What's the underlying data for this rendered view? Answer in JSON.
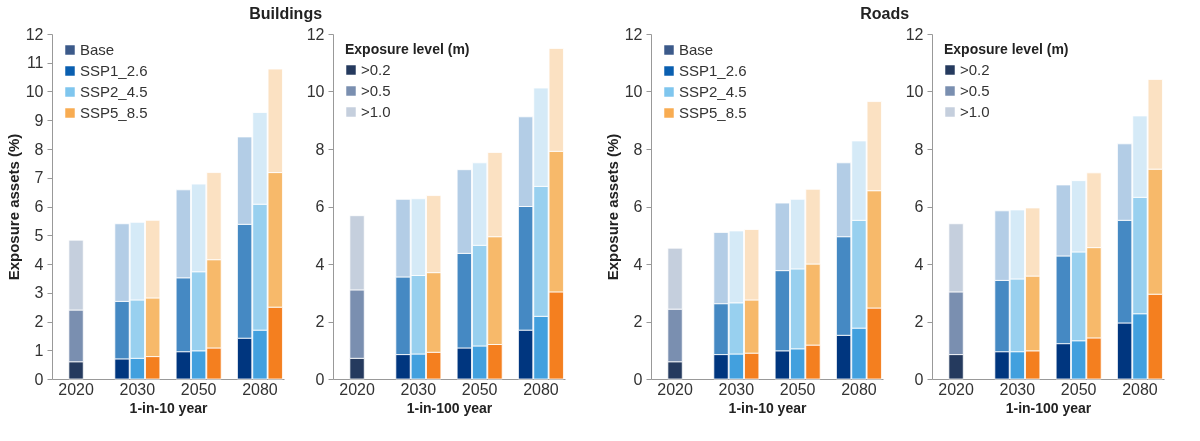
{
  "chart_data": [
    {
      "type": "bar",
      "stacked": true,
      "title": "Buildings",
      "xlabel": "1-in-10 year",
      "ylabel": "Exposure assets (%)",
      "ylim": [
        0,
        12
      ],
      "yticks": [
        0,
        1,
        2,
        3,
        4,
        5,
        6,
        7,
        8,
        9,
        10,
        11,
        12
      ],
      "grid": false,
      "legend": "top left",
      "categories": [
        null,
        "2020",
        null,
        null,
        null,
        "2030",
        null,
        null,
        null,
        "2050",
        null,
        null,
        null,
        "2080",
        null
      ],
      "series": [
        {
          "colors": [
            null,
            "#253a5e",
            null,
            null,
            "#00367f",
            "#42a0de",
            "#f47f1f",
            null,
            "#00367f",
            "#42a0de",
            "#f47f1f",
            null,
            "#00367f",
            "#42a0de",
            "#f47f1f"
          ],
          "values": [
            null,
            0.6,
            null,
            null,
            0.7,
            0.72,
            0.78,
            null,
            0.95,
            0.98,
            1.08,
            null,
            1.42,
            1.7,
            2.5
          ]
        },
        {
          "colors": [
            null,
            "#7a8fb0",
            null,
            null,
            "#4589c3",
            "#98d0ef",
            "#f7b96a",
            null,
            "#4589c3",
            "#98d0ef",
            "#f7b96a",
            null,
            "#4589c3",
            "#98d0ef",
            "#f7b96a"
          ],
          "values": [
            null,
            1.8,
            null,
            null,
            2.0,
            2.03,
            2.04,
            null,
            2.57,
            2.75,
            3.07,
            null,
            3.96,
            4.38,
            4.68
          ]
        },
        {
          "colors": [
            null,
            "#c5cfdd",
            null,
            null,
            "#b3cde6",
            "#d5eaf7",
            "#fbe1c2",
            null,
            "#b3cde6",
            "#d5eaf7",
            "#fbe1c2",
            null,
            "#b3cde6",
            "#d5eaf7",
            "#fbe1c2"
          ],
          "values": [
            null,
            2.43,
            null,
            null,
            2.7,
            2.7,
            2.7,
            null,
            3.06,
            3.05,
            3.03,
            null,
            3.04,
            3.19,
            3.6
          ]
        },
        {
          "name": "Base",
          "color": "#3c5a8a",
          "values": [
            null,
            null,
            null,
            null,
            null,
            null,
            null,
            null,
            null,
            null,
            null,
            null,
            null,
            null,
            null
          ]
        },
        {
          "name": "SSP1_2.6",
          "color": "#0a5fb0",
          "values": [
            null,
            null,
            null,
            null,
            null,
            null,
            null,
            null,
            null,
            null,
            null,
            null,
            null,
            null,
            null
          ]
        },
        {
          "name": "SSP2_4.5",
          "color": "#7fc6ee",
          "values": [
            null,
            null,
            null,
            null,
            null,
            null,
            null,
            null,
            null,
            null,
            null,
            null,
            null,
            null,
            null
          ]
        },
        {
          "name": "SSP5_8.5",
          "color": "#f8ac52",
          "values": [
            null,
            null,
            null,
            null,
            null,
            null,
            null,
            null,
            null,
            null,
            null,
            null,
            null,
            null,
            null
          ]
        }
      ]
    },
    {
      "type": "bar",
      "stacked": true,
      "xlabel": "1-in-100 year",
      "ylim": [
        0,
        12
      ],
      "yticks": [
        0,
        2,
        4,
        6,
        8,
        10,
        12
      ],
      "grid": false,
      "legend": "top left",
      "legend_title": "Exposure level (m)",
      "categories": [
        null,
        "2020",
        null,
        null,
        null,
        "2030",
        null,
        null,
        null,
        "2050",
        null,
        null,
        null,
        "2080",
        null
      ],
      "series": [
        {
          "name": ">0.2",
          "color": "#253a5e",
          "colors": [
            null,
            "#253a5e",
            null,
            null,
            "#00367f",
            "#42a0de",
            "#f47f1f",
            null,
            "#00367f",
            "#42a0de",
            "#f47f1f",
            null,
            "#00367f",
            "#42a0de",
            "#f47f1f"
          ],
          "values": [
            null,
            0.72,
            null,
            null,
            0.85,
            0.87,
            0.93,
            null,
            1.08,
            1.15,
            1.2,
            null,
            1.7,
            2.18,
            3.03
          ]
        },
        {
          "name": ">0.5",
          "color": "#7a8fb0",
          "colors": [
            null,
            "#7a8fb0",
            null,
            null,
            "#4589c3",
            "#98d0ef",
            "#f7b96a",
            null,
            "#4589c3",
            "#98d0ef",
            "#f7b96a",
            null,
            "#4589c3",
            "#98d0ef",
            "#f7b96a"
          ],
          "values": [
            null,
            2.38,
            null,
            null,
            2.7,
            2.73,
            2.77,
            null,
            3.29,
            3.5,
            3.75,
            null,
            4.3,
            4.52,
            4.89
          ]
        },
        {
          "name": ">1.0",
          "color": "#c5cfdd",
          "colors": [
            null,
            "#c5cfdd",
            null,
            null,
            "#b3cde6",
            "#d5eaf7",
            "#fbe1c2",
            null,
            "#b3cde6",
            "#d5eaf7",
            "#fbe1c2",
            null,
            "#b3cde6",
            "#d5eaf7",
            "#fbe1c2"
          ],
          "values": [
            null,
            2.58,
            null,
            null,
            2.7,
            2.67,
            2.68,
            null,
            2.91,
            2.87,
            2.93,
            null,
            3.12,
            3.42,
            3.58
          ]
        }
      ]
    },
    {
      "type": "bar",
      "stacked": true,
      "title": "Roads",
      "xlabel": "1-in-10 year",
      "ylabel": "Exposure assets (%)",
      "ylim": [
        0,
        12
      ],
      "yticks": [
        0,
        2,
        4,
        6,
        8,
        10,
        12
      ],
      "grid": false,
      "legend": "top left",
      "categories": [
        null,
        "2020",
        null,
        null,
        null,
        "2030",
        null,
        null,
        null,
        "2050",
        null,
        null,
        null,
        "2080",
        null
      ],
      "series": [
        {
          "colors": [
            null,
            "#253a5e",
            null,
            null,
            "#00367f",
            "#42a0de",
            "#f47f1f",
            null,
            "#00367f",
            "#42a0de",
            "#f47f1f",
            null,
            "#00367f",
            "#42a0de",
            "#f47f1f"
          ],
          "values": [
            null,
            0.6,
            null,
            null,
            0.85,
            0.87,
            0.9,
            null,
            0.98,
            1.05,
            1.18,
            null,
            1.52,
            1.77,
            2.47
          ]
        },
        {
          "colors": [
            null,
            "#7a8fb0",
            null,
            null,
            "#4589c3",
            "#98d0ef",
            "#f7b96a",
            null,
            "#4589c3",
            "#98d0ef",
            "#f7b96a",
            null,
            "#4589c3",
            "#98d0ef",
            "#f7b96a"
          ],
          "values": [
            null,
            1.83,
            null,
            null,
            1.77,
            1.78,
            1.85,
            null,
            2.79,
            2.78,
            2.82,
            null,
            3.43,
            3.75,
            4.08
          ]
        },
        {
          "colors": [
            null,
            "#c5cfdd",
            null,
            null,
            "#b3cde6",
            "#d5eaf7",
            "#fbe1c2",
            null,
            "#b3cde6",
            "#d5eaf7",
            "#fbe1c2",
            null,
            "#b3cde6",
            "#d5eaf7",
            "#fbe1c2"
          ],
          "values": [
            null,
            2.12,
            null,
            null,
            2.48,
            2.5,
            2.45,
            null,
            2.35,
            2.42,
            2.6,
            null,
            2.57,
            2.76,
            3.1
          ]
        },
        {
          "name": "Base",
          "color": "#3c5a8a",
          "values": [
            null,
            null,
            null,
            null,
            null,
            null,
            null,
            null,
            null,
            null,
            null,
            null,
            null,
            null,
            null
          ]
        },
        {
          "name": "SSP1_2.6",
          "color": "#0a5fb0",
          "values": [
            null,
            null,
            null,
            null,
            null,
            null,
            null,
            null,
            null,
            null,
            null,
            null,
            null,
            null,
            null
          ]
        },
        {
          "name": "SSP2_4.5",
          "color": "#7fc6ee",
          "values": [
            null,
            null,
            null,
            null,
            null,
            null,
            null,
            null,
            null,
            null,
            null,
            null,
            null,
            null,
            null
          ]
        },
        {
          "name": "SSP5_8.5",
          "color": "#f8ac52",
          "values": [
            null,
            null,
            null,
            null,
            null,
            null,
            null,
            null,
            null,
            null,
            null,
            null,
            null,
            null,
            null
          ]
        }
      ]
    },
    {
      "type": "bar",
      "stacked": true,
      "xlabel": "1-in-100 year",
      "ylim": [
        0,
        12
      ],
      "yticks": [
        0,
        2,
        4,
        6,
        8,
        10,
        12
      ],
      "grid": false,
      "legend": "top left",
      "legend_title": "Exposure level (m)",
      "categories": [
        null,
        "2020",
        null,
        null,
        null,
        "2030",
        null,
        null,
        null,
        "2050",
        null,
        null,
        null,
        "2080",
        null
      ],
      "series": [
        {
          "name": ">0.2",
          "color": "#253a5e",
          "colors": [
            null,
            "#253a5e",
            null,
            null,
            "#00367f",
            "#42a0de",
            "#f47f1f",
            null,
            "#00367f",
            "#42a0de",
            "#f47f1f",
            null,
            "#00367f",
            "#42a0de",
            "#f47f1f"
          ],
          "values": [
            null,
            0.85,
            null,
            null,
            0.95,
            0.95,
            0.98,
            null,
            1.23,
            1.33,
            1.43,
            null,
            1.95,
            2.27,
            2.95
          ]
        },
        {
          "name": ">0.5",
          "color": "#7a8fb0",
          "colors": [
            null,
            "#7a8fb0",
            null,
            null,
            "#4589c3",
            "#98d0ef",
            "#f7b96a",
            null,
            "#4589c3",
            "#98d0ef",
            "#f7b96a",
            null,
            "#4589c3",
            "#98d0ef",
            "#f7b96a"
          ],
          "values": [
            null,
            2.18,
            null,
            null,
            2.48,
            2.53,
            2.6,
            null,
            3.05,
            3.09,
            3.14,
            null,
            3.57,
            4.05,
            4.35
          ]
        },
        {
          "name": ">1.0",
          "color": "#c5cfdd",
          "colors": [
            null,
            "#c5cfdd",
            null,
            null,
            "#b3cde6",
            "#d5eaf7",
            "#fbe1c2",
            null,
            "#b3cde6",
            "#d5eaf7",
            "#fbe1c2",
            null,
            "#b3cde6",
            "#d5eaf7",
            "#fbe1c2"
          ],
          "values": [
            null,
            2.37,
            null,
            null,
            2.42,
            2.4,
            2.37,
            null,
            2.47,
            2.48,
            2.6,
            null,
            2.66,
            2.83,
            3.12
          ]
        }
      ]
    }
  ]
}
